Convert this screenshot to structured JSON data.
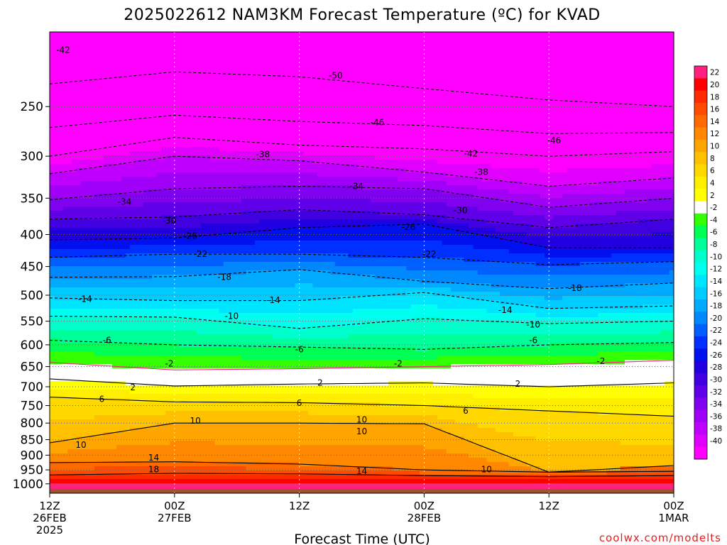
{
  "chart_data": {
    "type": "heatmap",
    "title": "2025022612 NAM3KM Forecast Temperature (ºC) for KVAD",
    "xlabel": "Forecast Time (UTC)",
    "credit": "coolwx.com/modelts",
    "x_ticks": [
      {
        "hour": 0,
        "line1": "12Z",
        "line2": "26FEB",
        "line3": "2025"
      },
      {
        "hour": 12,
        "line1": "00Z",
        "line2": "27FEB",
        "line3": ""
      },
      {
        "hour": 24,
        "line1": "12Z",
        "line2": "",
        "line3": ""
      },
      {
        "hour": 36,
        "line1": "00Z",
        "line2": "28FEB",
        "line3": ""
      },
      {
        "hour": 48,
        "line1": "12Z",
        "line2": "",
        "line3": ""
      },
      {
        "hour": 60,
        "line1": "00Z",
        "line2": "1MAR",
        "line3": ""
      }
    ],
    "xlim": [
      0,
      60
    ],
    "y_axis": {
      "scale": "log-pressure-inverted",
      "units": "hPa",
      "ylim": [
        1035,
        190
      ],
      "ticks": [
        250,
        300,
        350,
        400,
        450,
        500,
        550,
        600,
        650,
        700,
        750,
        800,
        850,
        900,
        950,
        1000
      ]
    },
    "colorbar": {
      "labels": [
        22,
        20,
        18,
        16,
        14,
        12,
        10,
        8,
        6,
        4,
        2,
        -2,
        -4,
        -6,
        -8,
        -10,
        -12,
        -14,
        -16,
        -18,
        -20,
        -22,
        -24,
        -26,
        -28,
        -30,
        -32,
        -34,
        -36,
        -38,
        -40
      ],
      "colors": [
        "#ff2080",
        "#ff0000",
        "#ff2a00",
        "#ff4a00",
        "#ff6a00",
        "#ff8800",
        "#ffa500",
        "#ffc000",
        "#ffd800",
        "#ffee00",
        "#ffff00",
        "#ffffff",
        "#33ff00",
        "#00ff55",
        "#00ff99",
        "#00ffcc",
        "#00ffee",
        "#00e5ff",
        "#00ccff",
        "#00aaff",
        "#0088ff",
        "#0060ff",
        "#0030ff",
        "#0010ee",
        "#2000e0",
        "#4000e0",
        "#6000e8",
        "#8000f0",
        "#a000f8",
        "#c000ff",
        "#e000ff",
        "#ff00ff"
      ]
    },
    "grid": true,
    "ground_color": "#a0522d",
    "isotherms": [
      {
        "temp": 22,
        "pressure": [
          1000,
          1000,
          1000,
          1000,
          1000,
          1000
        ]
      },
      {
        "temp": 18,
        "pressure": [
          968,
          962,
          964,
          970,
          974,
          970
        ]
      },
      {
        "temp": 14,
        "pressure": [
          925,
          922,
          930,
          950,
          958,
          935
        ]
      },
      {
        "temp": 10,
        "pressure": [
          860,
          800,
          800,
          802,
          958,
          955
        ]
      },
      {
        "temp": 6,
        "pressure": [
          727,
          740,
          742,
          750,
          765,
          780
        ]
      },
      {
        "temp": 2,
        "pressure": [
          680,
          698,
          693,
          690,
          700,
          690
        ]
      },
      {
        "temp": -2,
        "pressure": [
          640,
          658,
          655,
          650,
          645,
          635
        ]
      },
      {
        "temp": -6,
        "pressure": [
          590,
          600,
          605,
          610,
          600,
          595
        ]
      },
      {
        "temp": -10,
        "pressure": [
          540,
          542,
          565,
          545,
          555,
          550
        ]
      },
      {
        "temp": -14,
        "pressure": [
          505,
          510,
          510,
          495,
          525,
          520
        ]
      },
      {
        "temp": -18,
        "pressure": [
          468,
          467,
          455,
          475,
          488,
          478
        ]
      },
      {
        "temp": -22,
        "pressure": [
          435,
          430,
          430,
          435,
          447,
          442
        ]
      },
      {
        "temp": -26,
        "pressure": [
          408,
          405,
          390,
          385,
          420,
          420
        ]
      },
      {
        "temp": -30,
        "pressure": [
          378,
          375,
          365,
          372,
          390,
          378
        ]
      },
      {
        "temp": -34,
        "pressure": [
          352,
          338,
          335,
          338,
          362,
          350
        ]
      },
      {
        "temp": -38,
        "pressure": [
          320,
          300,
          305,
          318,
          335,
          325
        ]
      },
      {
        "temp": -42,
        "pressure": [
          300,
          280,
          288,
          292,
          300,
          295
        ]
      },
      {
        "temp": -46,
        "pressure": [
          270,
          258,
          264,
          268,
          276,
          275
        ]
      },
      {
        "temp": -50,
        "pressure": [
          230,
          220,
          224,
          234,
          244,
          250
        ]
      }
    ],
    "contour_labels": [
      {
        "text": "-42",
        "hour": 1.3,
        "pressure": 203
      },
      {
        "text": "-50",
        "hour": 27.5,
        "pressure": 223
      },
      {
        "text": "-46",
        "hour": 31.5,
        "pressure": 265
      },
      {
        "text": "-46",
        "hour": 48.5,
        "pressure": 283
      },
      {
        "text": "-42",
        "hour": 40.5,
        "pressure": 297
      },
      {
        "text": "-38",
        "hour": 20.5,
        "pressure": 298
      },
      {
        "text": "-38",
        "hour": 41.5,
        "pressure": 318
      },
      {
        "text": "-34",
        "hour": 29.5,
        "pressure": 335
      },
      {
        "text": "-34",
        "hour": 7.2,
        "pressure": 355
      },
      {
        "text": "-30",
        "hour": 39.5,
        "pressure": 366
      },
      {
        "text": "-30",
        "hour": 11.5,
        "pressure": 380
      },
      {
        "text": "-26",
        "hour": 34.5,
        "pressure": 389
      },
      {
        "text": "-26",
        "hour": 13.5,
        "pressure": 402
      },
      {
        "text": "-22",
        "hour": 14.5,
        "pressure": 430
      },
      {
        "text": "-22",
        "hour": 36.5,
        "pressure": 430
      },
      {
        "text": "-18",
        "hour": 16.8,
        "pressure": 468
      },
      {
        "text": "-18",
        "hour": 50.5,
        "pressure": 487
      },
      {
        "text": "-14",
        "hour": 3.4,
        "pressure": 507
      },
      {
        "text": "-14",
        "hour": 21.5,
        "pressure": 509
      },
      {
        "text": "-14",
        "hour": 43.8,
        "pressure": 528
      },
      {
        "text": "-10",
        "hour": 17.5,
        "pressure": 540
      },
      {
        "text": "-10",
        "hour": 46.5,
        "pressure": 557
      },
      {
        "text": "-6",
        "hour": 5.5,
        "pressure": 590
      },
      {
        "text": "-6",
        "hour": 24.0,
        "pressure": 610
      },
      {
        "text": "-6",
        "hour": 46.5,
        "pressure": 590
      },
      {
        "text": "-2",
        "hour": 11.5,
        "pressure": 643
      },
      {
        "text": "-2",
        "hour": 33.5,
        "pressure": 643
      },
      {
        "text": "-2",
        "hour": 53.0,
        "pressure": 637
      },
      {
        "text": "2",
        "hour": 8.0,
        "pressure": 702
      },
      {
        "text": "2",
        "hour": 26.0,
        "pressure": 690
      },
      {
        "text": "2",
        "hour": 45.0,
        "pressure": 693
      },
      {
        "text": "6",
        "hour": 5.0,
        "pressure": 733
      },
      {
        "text": "6",
        "hour": 24.0,
        "pressure": 743
      },
      {
        "text": "6",
        "hour": 40.0,
        "pressure": 765
      },
      {
        "text": "10",
        "hour": 14.0,
        "pressure": 793
      },
      {
        "text": "10",
        "hour": 30.0,
        "pressure": 790
      },
      {
        "text": "10",
        "hour": 30.0,
        "pressure": 825
      },
      {
        "text": "10",
        "hour": 3.0,
        "pressure": 867
      },
      {
        "text": "10",
        "hour": 42.0,
        "pressure": 948
      },
      {
        "text": "14",
        "hour": 10.0,
        "pressure": 908
      },
      {
        "text": "14",
        "hour": 30.0,
        "pressure": 955
      },
      {
        "text": "18",
        "hour": 10.0,
        "pressure": 948
      }
    ]
  }
}
